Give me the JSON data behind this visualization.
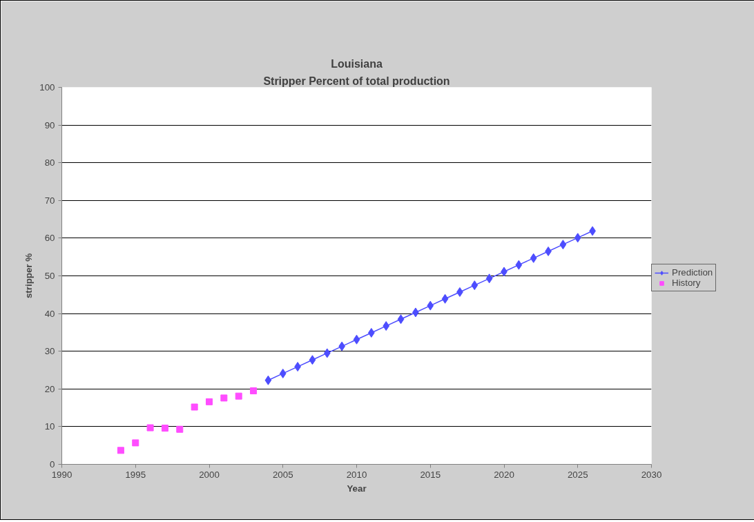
{
  "chart_data": {
    "type": "line",
    "title": "Louisiana",
    "subtitle": "Stripper Percent of total production",
    "xlabel": "Year",
    "ylabel": "stripper %",
    "xlim": [
      1990,
      2030
    ],
    "xticks": [
      1990,
      1995,
      2000,
      2005,
      2010,
      2015,
      2020,
      2025,
      2030
    ],
    "ylim": [
      0,
      100
    ],
    "yticks": [
      0,
      10,
      20,
      30,
      40,
      50,
      60,
      70,
      80,
      90,
      100
    ],
    "grid": "y",
    "legend": "right",
    "series": [
      {
        "name": "Prediction",
        "color": "#4d4dff",
        "marker": "diamond",
        "x": [
          2004,
          2005,
          2006,
          2007,
          2008,
          2009,
          2010,
          2011,
          2012,
          2013,
          2014,
          2015,
          2016,
          2017,
          2018,
          2019,
          2020,
          2021,
          2022,
          2023,
          2024,
          2025,
          2026
        ],
        "values": [
          22.3,
          24.1,
          25.9,
          27.7,
          29.5,
          31.3,
          33.1,
          34.9,
          36.7,
          38.5,
          40.3,
          42.1,
          43.9,
          45.7,
          47.5,
          49.3,
          51.1,
          52.9,
          54.7,
          56.5,
          58.3,
          60.1,
          61.9
        ]
      },
      {
        "name": "History",
        "type": "scatter",
        "color": "#ff4dff",
        "marker": "square",
        "x": [
          1994,
          1995,
          1996,
          1997,
          1998,
          1999,
          2000,
          2001,
          2002,
          2003
        ],
        "values": [
          3.7,
          5.7,
          9.7,
          9.6,
          9.3,
          15.2,
          16.6,
          17.6,
          18.1,
          19.5
        ]
      }
    ]
  }
}
